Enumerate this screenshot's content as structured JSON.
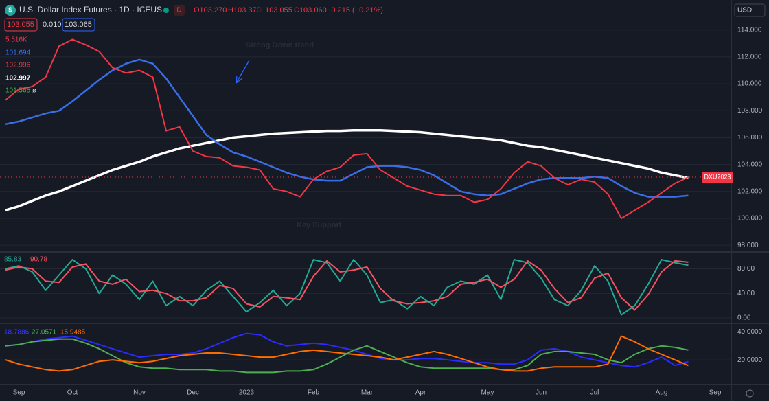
{
  "header": {
    "title": "U.S. Dollar Index Futures · 1D · ICEUS",
    "logo": "$",
    "flag": "D",
    "ohlc": [
      "O103.270",
      "H103.370",
      "L103.055",
      "C103.060",
      "−0.215 (−0.21%)"
    ],
    "sell": "103.055",
    "spread": "0.010",
    "buy": "103.065",
    "currency": "USD",
    "price_tag": "DXU2023"
  },
  "legend": [
    "5.516K",
    "101.694",
    "102.996",
    "102.997",
    "101.565",
    "ø"
  ],
  "annotations": [
    "Strong Down trend",
    "Key Support"
  ],
  "chart_data": [
    {
      "type": "line",
      "categories": [
        null,
        "Sep",
        null,
        null,
        null,
        "Oct",
        null,
        null,
        null,
        null,
        "Nov",
        null,
        null,
        null,
        "Dec",
        null,
        null,
        null,
        "2023",
        null,
        null,
        null,
        null,
        "Feb",
        null,
        null,
        null,
        "Mar",
        null,
        null,
        null,
        "Apr",
        null,
        null,
        null,
        null,
        "May",
        null,
        null,
        null,
        "Jun",
        null,
        null,
        null,
        "Jul",
        null,
        null,
        null,
        null,
        "Aug",
        null,
        null,
        null,
        "Sep",
        null
      ],
      "ylim": [
        97.6,
        114.7
      ],
      "yticks": [
        {
          "value": 98,
          "label": "98.000"
        },
        {
          "value": 100,
          "label": "100.000"
        },
        {
          "value": 102,
          "label": "102.000"
        },
        {
          "value": 104,
          "label": "104.000"
        },
        {
          "value": 106,
          "label": "106.000"
        },
        {
          "value": 108,
          "label": "108.000"
        },
        {
          "value": 110,
          "label": "110.000"
        },
        {
          "value": 112,
          "label": "112.000"
        },
        {
          "value": 114,
          "label": "114.000"
        }
      ],
      "grid": true,
      "series": [
        {
          "color": "#ffffff",
          "width": 3.5,
          "values": [
            100.6,
            100.9,
            101.3,
            101.7,
            102.0,
            102.4,
            102.8,
            103.2,
            103.6,
            103.9,
            104.2,
            104.6,
            104.9,
            105.2,
            105.4,
            105.6,
            105.8,
            106.0,
            106.1,
            106.2,
            106.3,
            106.35,
            106.4,
            106.45,
            106.5,
            106.5,
            106.55,
            106.55,
            106.55,
            106.5,
            106.45,
            106.4,
            106.3,
            106.2,
            106.1,
            106.0,
            105.9,
            105.8,
            105.6,
            105.4,
            105.3,
            105.1,
            104.9,
            104.7,
            104.5,
            104.3,
            104.1,
            103.9,
            103.7,
            103.4,
            103.2,
            103.0,
            null,
            null,
            null
          ]
        },
        {
          "color": "#3a6ee8",
          "width": 2.5,
          "values": [
            107.0,
            107.2,
            107.5,
            107.8,
            108.0,
            108.7,
            109.5,
            110.3,
            111.0,
            111.5,
            111.8,
            111.5,
            110.4,
            109.0,
            107.6,
            106.2,
            105.5,
            104.9,
            104.6,
            104.2,
            103.8,
            103.4,
            103.1,
            102.9,
            102.8,
            102.8,
            103.3,
            103.8,
            103.9,
            103.9,
            103.8,
            103.6,
            103.2,
            102.6,
            102.0,
            101.8,
            101.7,
            101.8,
            102.2,
            102.6,
            102.9,
            103.0,
            103.0,
            103.0,
            103.1,
            103.0,
            102.4,
            101.9,
            101.6,
            101.6,
            101.6,
            101.7,
            null,
            null,
            null
          ]
        },
        {
          "color": "#f23645",
          "width": 2,
          "values": [
            108.8,
            109.6,
            109.8,
            110.5,
            112.8,
            113.3,
            112.9,
            112.4,
            111.2,
            110.8,
            111.0,
            110.5,
            106.5,
            106.8,
            105.0,
            104.6,
            104.5,
            103.9,
            103.8,
            103.6,
            102.2,
            102.0,
            101.6,
            102.9,
            103.5,
            103.8,
            104.7,
            104.8,
            103.6,
            103.0,
            102.4,
            102.1,
            101.8,
            101.7,
            101.7,
            101.2,
            101.4,
            102.2,
            103.4,
            104.2,
            103.9,
            103.0,
            102.5,
            102.9,
            102.7,
            101.8,
            100.0,
            100.6,
            101.2,
            101.9,
            102.6,
            103.06,
            null,
            null,
            null
          ]
        }
      ]
    },
    {
      "type": "line",
      "ylim": [
        -6.6,
        105.2
      ],
      "yticks": [
        {
          "value": 0,
          "label": "0.00"
        },
        {
          "value": 40,
          "label": "40.00"
        },
        {
          "value": 80,
          "label": "80.00"
        }
      ],
      "grid": true,
      "series": [
        {
          "color": "#22ab94",
          "width": 2,
          "values": [
            80,
            85,
            75,
            45,
            70,
            95,
            80,
            40,
            70,
            55,
            30,
            60,
            20,
            35,
            20,
            45,
            60,
            35,
            10,
            25,
            45,
            20,
            40,
            95,
            90,
            60,
            95,
            70,
            25,
            30,
            15,
            35,
            20,
            50,
            60,
            55,
            70,
            30,
            95,
            90,
            65,
            30,
            20,
            45,
            85,
            60,
            5,
            20,
            55,
            95,
            90,
            85.83,
            null,
            null,
            null
          ]
        },
        {
          "color": "#f7525f",
          "width": 2,
          "values": [
            78,
            83,
            80,
            60,
            58,
            83,
            88,
            60,
            55,
            63,
            43,
            45,
            40,
            28,
            28,
            33,
            53,
            48,
            23,
            18,
            35,
            33,
            30,
            68,
            93,
            75,
            78,
            83,
            48,
            28,
            23,
            25,
            28,
            35,
            55,
            58,
            63,
            50,
            63,
            93,
            78,
            48,
            25,
            33,
            65,
            73,
            33,
            13,
            38,
            75,
            93,
            90.78,
            null,
            null,
            null
          ]
        }
      ]
    },
    {
      "type": "line",
      "ylim": [
        3.3,
        45.2
      ],
      "yticks": [
        {
          "value": 20,
          "label": "20.0000"
        },
        {
          "value": 40,
          "label": "40.0000"
        }
      ],
      "grid": true,
      "series": [
        {
          "color": "#2b2bff",
          "width": 2,
          "values": [
            30,
            31,
            33,
            35,
            36,
            37,
            34,
            31,
            28,
            25,
            22,
            23,
            24,
            24,
            25,
            28,
            32,
            36,
            39,
            38,
            33,
            30,
            31,
            32,
            31,
            29,
            27,
            24,
            21,
            20,
            20,
            21,
            21,
            20,
            19,
            18,
            18,
            17,
            17,
            20,
            27,
            28,
            26,
            22,
            20,
            18,
            16,
            15,
            18,
            22,
            16,
            18.7886,
            null,
            null,
            null
          ]
        },
        {
          "color": "#4caf50",
          "width": 2,
          "values": [
            30,
            31,
            33,
            34,
            35,
            35,
            32,
            28,
            23,
            18,
            15,
            14,
            14,
            13,
            13,
            13,
            12,
            12,
            11,
            11,
            11,
            12,
            12,
            13,
            17,
            22,
            27,
            30,
            26,
            22,
            18,
            15,
            14,
            14,
            14,
            14,
            14,
            13,
            13,
            16,
            24,
            26,
            26,
            25,
            24,
            20,
            18,
            24,
            28,
            30,
            29,
            27.0571,
            null,
            null,
            null
          ]
        },
        {
          "color": "#ff6d00",
          "width": 2,
          "values": [
            20,
            17,
            15,
            13,
            12,
            13,
            16,
            19,
            20,
            19,
            18,
            19,
            21,
            23,
            24,
            25,
            25,
            24,
            23,
            22,
            22,
            24,
            26,
            27,
            26,
            25,
            24,
            23,
            22,
            20,
            22,
            24,
            26,
            24,
            21,
            18,
            15,
            13,
            12,
            12,
            14,
            15,
            15,
            15,
            15,
            17,
            37,
            33,
            28,
            24,
            20,
            15.9485,
            null,
            null,
            null
          ]
        }
      ]
    }
  ]
}
